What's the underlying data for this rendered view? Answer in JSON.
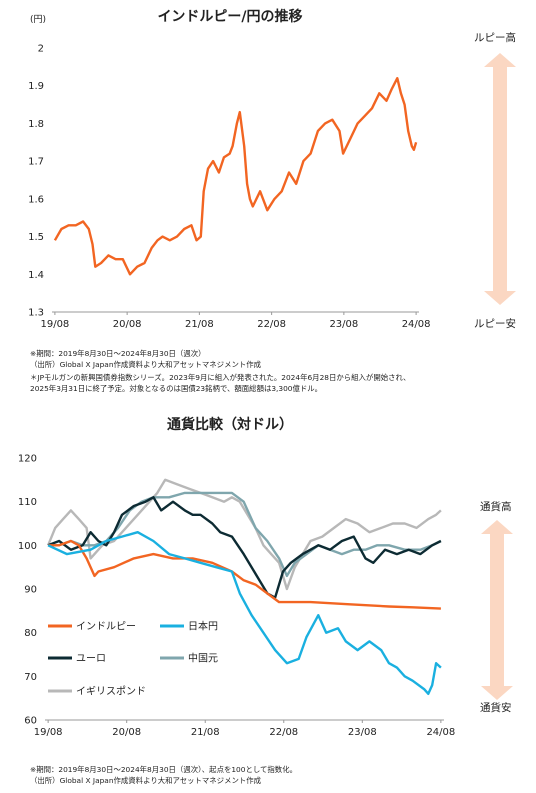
{
  "colors": {
    "inr": "#f26522",
    "jpy": "#1ab0e0",
    "eur": "#0d2b33",
    "cny": "#7fa6ad",
    "gbp": "#b8b8b8",
    "arrow": "#fbd7c2"
  },
  "chart1": {
    "title": "インドルピー/円の推移",
    "unit": "(円)",
    "label_high": "ルピー高",
    "label_low": "ルピー安",
    "notes": [
      "※期間：2019年8月30日～2024年8月30日（週次）",
      "（出所）Global X Japan作成資料より大和アセットマネジメント作成",
      "＊JPモルガンの新興国債券指数シリーズ。2023年9月に組入が発表された。2024年6月28日から組入が開始され、",
      "2025年3月31日に終了予定。対象となるのは国債23銘柄で、額面総額は3,300億ドル。"
    ]
  },
  "chart2": {
    "title": "通貨比較（対ドル）",
    "label_high": "通貨高",
    "label_low": "通貨安",
    "notes": [
      "※期間：2019年8月30日～2024年8月30日（週次）、起点を100として指数化。",
      "（出所）Global X Japan作成資料より大和アセットマネジメント作成"
    ]
  },
  "chart_data": [
    {
      "type": "line",
      "title": "インドルピー/円の推移",
      "ylabel": "(円)",
      "xlabel": "",
      "ylim": [
        1.3,
        2.0
      ],
      "yticks": [
        "1.3",
        "1.4",
        "1.5",
        "1.6",
        "1.7",
        "1.8",
        "1.9",
        "2"
      ],
      "xlim": [
        2019.62,
        2024.7
      ],
      "xticks": [
        "19/08",
        "20/08",
        "21/08",
        "22/08",
        "23/08",
        "24/08"
      ],
      "series": [
        {
          "x": [
            2019.66,
            2019.75,
            2019.85,
            2019.95,
            2020.05,
            2020.13,
            2020.18,
            2020.22,
            2020.3,
            2020.4,
            2020.5,
            2020.6,
            2020.7,
            2020.8,
            2020.9,
            2021.0,
            2021.08,
            2021.15,
            2021.25,
            2021.35,
            2021.45,
            2021.55,
            2021.62,
            2021.68,
            2021.72,
            2021.78,
            2021.85,
            2021.93,
            2022.0,
            2022.08,
            2022.12,
            2022.18,
            2022.22,
            2022.28,
            2022.32,
            2022.36,
            2022.4,
            2022.5,
            2022.6,
            2022.7,
            2022.8,
            2022.9,
            2023.0,
            2023.1,
            2023.2,
            2023.3,
            2023.4,
            2023.5,
            2023.6,
            2023.65,
            2023.75,
            2023.85,
            2023.95,
            2024.05,
            2024.15,
            2024.25,
            2024.32,
            2024.4,
            2024.45,
            2024.5,
            2024.55,
            2024.6,
            2024.63,
            2024.66
          ],
          "y": [
            1.49,
            1.52,
            1.53,
            1.53,
            1.54,
            1.52,
            1.48,
            1.42,
            1.43,
            1.45,
            1.44,
            1.44,
            1.4,
            1.42,
            1.43,
            1.47,
            1.49,
            1.5,
            1.49,
            1.5,
            1.52,
            1.53,
            1.49,
            1.5,
            1.62,
            1.68,
            1.7,
            1.67,
            1.71,
            1.72,
            1.74,
            1.8,
            1.83,
            1.74,
            1.64,
            1.6,
            1.58,
            1.62,
            1.57,
            1.6,
            1.62,
            1.67,
            1.64,
            1.7,
            1.72,
            1.78,
            1.8,
            1.81,
            1.78,
            1.72,
            1.76,
            1.8,
            1.82,
            1.84,
            1.88,
            1.86,
            1.89,
            1.92,
            1.88,
            1.85,
            1.78,
            1.74,
            1.73,
            1.75
          ]
        }
      ]
    },
    {
      "type": "line",
      "title": "通貨比較（対ドル）",
      "ylim": [
        60,
        120
      ],
      "yticks": [
        "60",
        "70",
        "80",
        "90",
        "100",
        "110",
        "120"
      ],
      "xlim": [
        2019.62,
        2024.7
      ],
      "xticks": [
        "19/08",
        "20/08",
        "21/08",
        "22/08",
        "23/08",
        "24/08"
      ],
      "legend": "bottom-left",
      "series": [
        {
          "name": "インドルピー",
          "x": [
            2019.66,
            2019.8,
            2019.95,
            2020.05,
            2020.15,
            2020.25,
            2020.3,
            2020.5,
            2020.75,
            2021.0,
            2021.25,
            2021.5,
            2021.75,
            2022.0,
            2022.15,
            2022.3,
            2022.45,
            2022.6,
            2022.8,
            2023.0,
            2023.5,
            2024.0,
            2024.3,
            2024.66
          ],
          "y": [
            100,
            100,
            101,
            100,
            97,
            93,
            94,
            95,
            97,
            98,
            97,
            97,
            96,
            94,
            92,
            91,
            89,
            87,
            87,
            87,
            86.5,
            86,
            85.8,
            85.5
          ]
        },
        {
          "name": "日本円",
          "x": [
            2019.66,
            2019.9,
            2020.2,
            2020.4,
            2020.6,
            2020.8,
            2021.0,
            2021.2,
            2021.4,
            2021.6,
            2021.8,
            2022.0,
            2022.1,
            2022.25,
            2022.4,
            2022.55,
            2022.7,
            2022.85,
            2022.95,
            2023.1,
            2023.2,
            2023.35,
            2023.45,
            2023.6,
            2023.75,
            2023.9,
            2024.0,
            2024.1,
            2024.2,
            2024.3,
            2024.45,
            2024.5,
            2024.55,
            2024.6,
            2024.66
          ],
          "y": [
            100,
            98,
            99,
            101,
            102,
            103,
            101,
            98,
            97,
            96,
            95,
            94,
            89,
            84,
            80,
            76,
            73,
            74,
            79,
            84,
            80,
            81,
            78,
            76,
            78,
            76,
            73,
            72,
            70,
            69,
            67,
            66,
            68,
            73,
            72
          ]
        },
        {
          "name": "ユーロ",
          "x": [
            2019.66,
            2019.8,
            2019.95,
            2020.1,
            2020.2,
            2020.3,
            2020.4,
            2020.5,
            2020.6,
            2020.75,
            2020.9,
            2021.0,
            2021.1,
            2021.25,
            2021.4,
            2021.5,
            2021.6,
            2021.75,
            2021.85,
            2022.0,
            2022.15,
            2022.25,
            2022.35,
            2022.45,
            2022.55,
            2022.65,
            2022.75,
            2022.9,
            2023.0,
            2023.1,
            2023.25,
            2023.4,
            2023.55,
            2023.7,
            2023.8,
            2023.95,
            2024.1,
            2024.25,
            2024.4,
            2024.55,
            2024.66
          ],
          "y": [
            100,
            101,
            99,
            100,
            103,
            101,
            100,
            103,
            107,
            109,
            110,
            111,
            108,
            110,
            108,
            107,
            107,
            105,
            103,
            102,
            98,
            95,
            92,
            89,
            88,
            94,
            96,
            98,
            99,
            100,
            99,
            101,
            102,
            97,
            96,
            99,
            98,
            99,
            98,
            100,
            101
          ]
        },
        {
          "name": "中国元",
          "x": [
            2019.66,
            2019.8,
            2019.95,
            2020.1,
            2020.25,
            2020.4,
            2020.55,
            2020.7,
            2020.85,
            2021.0,
            2021.2,
            2021.4,
            2021.6,
            2021.8,
            2022.0,
            2022.15,
            2022.3,
            2022.45,
            2022.6,
            2022.7,
            2022.8,
            2022.95,
            2023.1,
            2023.25,
            2023.4,
            2023.55,
            2023.7,
            2023.85,
            2024.0,
            2024.2,
            2024.4,
            2024.55,
            2024.66
          ],
          "y": [
            100,
            100,
            101,
            100,
            100,
            101,
            104,
            108,
            110,
            111,
            111,
            112,
            112,
            112,
            112,
            110,
            104,
            101,
            97,
            93,
            96,
            98,
            100,
            99,
            98,
            99,
            99,
            100,
            100,
            99,
            99,
            100,
            101
          ]
        },
        {
          "name": "イギリスポンド",
          "x": [
            2019.66,
            2019.75,
            2019.85,
            2019.95,
            2020.05,
            2020.15,
            2020.2,
            2020.25,
            2020.35,
            2020.5,
            2020.65,
            2020.8,
            2020.95,
            2021.05,
            2021.15,
            2021.3,
            2021.45,
            2021.6,
            2021.75,
            2021.9,
            2022.0,
            2022.1,
            2022.2,
            2022.3,
            2022.4,
            2022.5,
            2022.6,
            2022.7,
            2022.8,
            2022.9,
            2023.0,
            2023.15,
            2023.3,
            2023.45,
            2023.6,
            2023.75,
            2023.9,
            2024.05,
            2024.2,
            2024.35,
            2024.5,
            2024.6,
            2024.66
          ],
          "y": [
            100,
            104,
            106,
            108,
            106,
            104,
            97,
            98,
            100,
            101,
            104,
            107,
            110,
            112,
            115,
            114,
            113,
            112,
            111,
            110,
            111,
            110,
            107,
            104,
            100,
            98,
            96,
            90,
            95,
            98,
            101,
            102,
            104,
            106,
            105,
            103,
            104,
            105,
            105,
            104,
            106,
            107,
            108
          ]
        }
      ]
    }
  ]
}
